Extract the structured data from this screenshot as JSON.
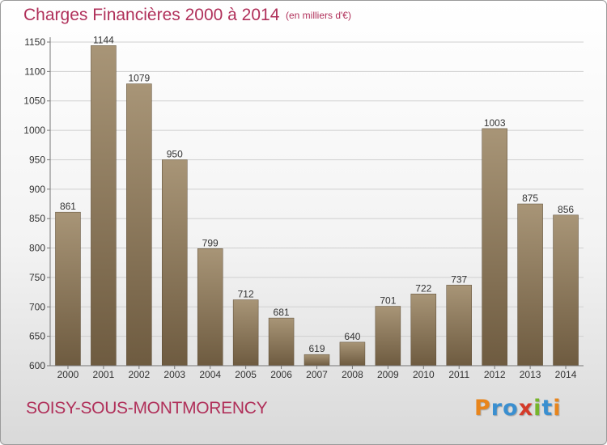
{
  "header": {
    "title": "Charges Financières 2000 à 2014",
    "subtitle": "(en milliers d'€)"
  },
  "footer": {
    "commune": "SOISY-SOUS-MONTMORENCY",
    "logo_text": "Proxiti",
    "logo_colors": [
      "#e8851c",
      "#3a8fd0",
      "#3a8fd0",
      "#d43b2a",
      "#76b52b",
      "#3a8fd0",
      "#e8851c"
    ]
  },
  "colors": {
    "title": "#b0305a",
    "bar_light": "#a89577",
    "bar_dark": "#6e5b40"
  },
  "chart_data": {
    "type": "bar",
    "title": "Charges Financières 2000 à 2014",
    "subtitle": "(en milliers d'€)",
    "xlabel": "",
    "ylabel": "",
    "categories": [
      "2000",
      "2001",
      "2002",
      "2003",
      "2004",
      "2005",
      "2006",
      "2007",
      "2008",
      "2009",
      "2010",
      "2011",
      "2012",
      "2013",
      "2014"
    ],
    "values": [
      861,
      1144,
      1079,
      950,
      799,
      712,
      681,
      619,
      640,
      701,
      722,
      737,
      1003,
      875,
      856
    ],
    "ylim": [
      600,
      1150
    ],
    "yticks": [
      600,
      650,
      700,
      750,
      800,
      850,
      900,
      950,
      1000,
      1050,
      1100,
      1150
    ],
    "grid": true,
    "data_labels": true
  }
}
